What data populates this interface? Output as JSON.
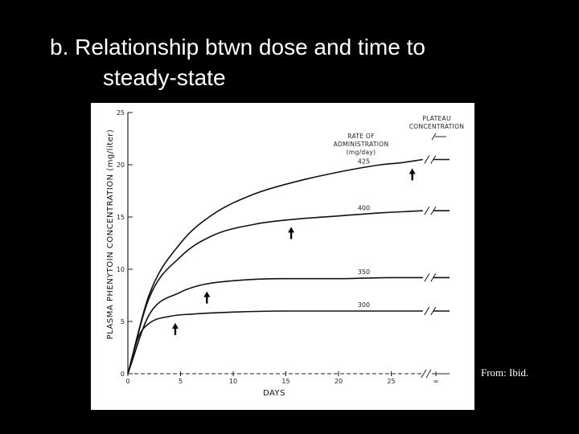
{
  "slide": {
    "title_line1": "b. Relationship btwn dose and time to",
    "title_line2": "steady-state",
    "source_note": "From: Ibid."
  },
  "chart_data": {
    "type": "line",
    "xlabel": "DAYS",
    "ylabel": "PLASMA PHENYTOIN CONCENTRATION (mg/liter)",
    "x_ticks": [
      "0",
      "5",
      "10",
      "15",
      "20",
      "25",
      "∞"
    ],
    "y_ticks": [
      "0",
      "5",
      "10",
      "15",
      "20",
      "25"
    ],
    "xlim": [
      0,
      30
    ],
    "ylim": [
      0,
      25
    ],
    "axis_break_x": true,
    "legend_title": [
      "RATE OF",
      "ADMINISTRATION",
      "(mg/day)"
    ],
    "plateau_label": [
      "PLATEAU",
      "CONCENTRATION"
    ],
    "colors": {
      "line": "#111111",
      "background": "#ffffff"
    },
    "series": [
      {
        "name": "425",
        "x": [
          0,
          2,
          5,
          8,
          12,
          16,
          20,
          24,
          26,
          28
        ],
        "y": [
          0,
          7.5,
          12.5,
          15.2,
          17.2,
          18.4,
          19.3,
          20,
          20.2,
          20.5
        ],
        "plateau": 20.5,
        "arrow_day": 27
      },
      {
        "name": "400",
        "x": [
          0,
          2,
          5,
          8,
          12,
          16,
          20,
          24,
          26,
          28
        ],
        "y": [
          0,
          7.2,
          11.2,
          13.2,
          14.3,
          14.8,
          15.1,
          15.4,
          15.5,
          15.6
        ],
        "plateau": 15.6,
        "arrow_day": 15.5
      },
      {
        "name": "350",
        "x": [
          0,
          2,
          5,
          7,
          10,
          15,
          20,
          25,
          28
        ],
        "y": [
          0,
          5.6,
          7.8,
          8.5,
          8.9,
          9.1,
          9.1,
          9.2,
          9.2
        ],
        "plateau": 9.2,
        "arrow_day": 7.5
      },
      {
        "name": "300",
        "x": [
          0,
          1,
          2,
          4,
          6,
          10,
          15,
          20,
          25,
          28
        ],
        "y": [
          0,
          3.5,
          4.8,
          5.5,
          5.7,
          5.9,
          6,
          6,
          6,
          6
        ],
        "plateau": 6,
        "arrow_day": 4.5
      }
    ]
  }
}
